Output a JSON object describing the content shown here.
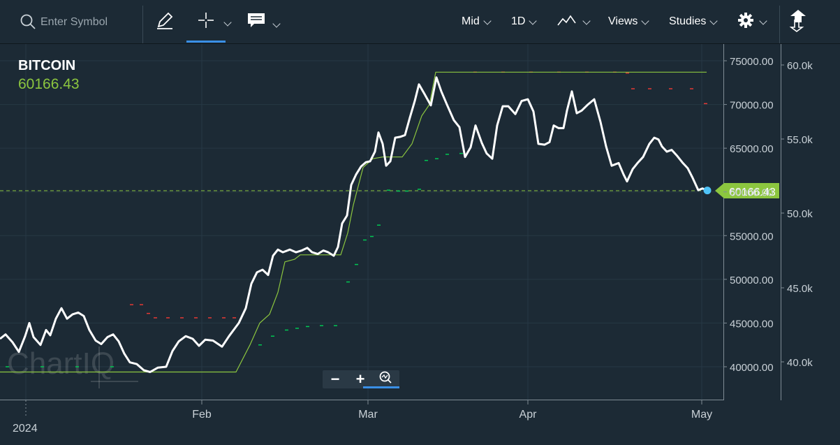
{
  "toolbar": {
    "search_placeholder": "Enter Symbol",
    "mid_label": "Mid",
    "period_label": "1D",
    "views_label": "Views",
    "studies_label": "Studies"
  },
  "chart": {
    "symbol": "BITCOIN",
    "current_price": "60166.43",
    "price_tag": "60166.43",
    "watermark": "ChartIQ",
    "y_axis_primary": [
      "75000.00",
      "70000.00",
      "65000.00",
      "60000.00",
      "55000.00",
      "50000.00",
      "45000.00",
      "40000.00"
    ],
    "y_axis_secondary": [
      "60.0k",
      "55.0k",
      "50.0k",
      "45.0k",
      "40.0k"
    ],
    "x_axis": [
      "Feb",
      "Mar",
      "Apr",
      "May"
    ],
    "year_label": "2024",
    "colors": {
      "price_line": "#ffffff",
      "band_line": "#8cc63f",
      "sar_up": "#00c853",
      "sar_down": "#e53935",
      "tag": "#8cc63f",
      "dot": "#4fc3f7"
    }
  },
  "chart_data": {
    "type": "line",
    "title": "BITCOIN",
    "y_range": [
      38000,
      76500
    ],
    "series": [
      {
        "name": "BITCOIN",
        "values": [
          [
            0,
            43200
          ],
          [
            8,
            43700
          ],
          [
            18,
            42800
          ],
          [
            27,
            41700
          ],
          [
            36,
            43500
          ],
          [
            42,
            45000
          ],
          [
            48,
            43400
          ],
          [
            58,
            42500
          ],
          [
            66,
            44200
          ],
          [
            72,
            43600
          ],
          [
            80,
            45500
          ],
          [
            88,
            46700
          ],
          [
            96,
            45500
          ],
          [
            104,
            46000
          ],
          [
            112,
            46200
          ],
          [
            120,
            45800
          ],
          [
            128,
            44200
          ],
          [
            137,
            43000
          ],
          [
            145,
            42600
          ],
          [
            154,
            43400
          ],
          [
            162,
            43700
          ],
          [
            170,
            42900
          ],
          [
            178,
            41500
          ],
          [
            186,
            40500
          ],
          [
            196,
            40300
          ],
          [
            206,
            39600
          ],
          [
            215,
            39400
          ],
          [
            226,
            39900
          ],
          [
            238,
            40000
          ],
          [
            247,
            41800
          ],
          [
            256,
            42900
          ],
          [
            266,
            43500
          ],
          [
            276,
            43200
          ],
          [
            285,
            42400
          ],
          [
            294,
            43100
          ],
          [
            305,
            43000
          ],
          [
            318,
            42300
          ],
          [
            328,
            43500
          ],
          [
            342,
            45000
          ],
          [
            352,
            46700
          ],
          [
            360,
            49500
          ],
          [
            368,
            50800
          ],
          [
            376,
            51100
          ],
          [
            384,
            50500
          ],
          [
            391,
            52700
          ],
          [
            398,
            53400
          ],
          [
            405,
            53100
          ],
          [
            415,
            53400
          ],
          [
            424,
            53100
          ],
          [
            432,
            53300
          ],
          [
            440,
            53600
          ],
          [
            447,
            53100
          ],
          [
            455,
            52900
          ],
          [
            463,
            53300
          ],
          [
            470,
            53100
          ],
          [
            478,
            52700
          ],
          [
            484,
            53700
          ],
          [
            490,
            56400
          ],
          [
            497,
            57300
          ],
          [
            503,
            60800
          ],
          [
            510,
            62000
          ],
          [
            517,
            62900
          ],
          [
            524,
            63400
          ],
          [
            530,
            63500
          ],
          [
            537,
            64600
          ],
          [
            542,
            66800
          ],
          [
            548,
            65500
          ],
          [
            553,
            63000
          ],
          [
            559,
            63500
          ],
          [
            566,
            66200
          ],
          [
            573,
            66300
          ],
          [
            580,
            66500
          ],
          [
            587,
            68500
          ],
          [
            594,
            70400
          ],
          [
            600,
            72300
          ],
          [
            608,
            71200
          ],
          [
            617,
            69900
          ],
          [
            625,
            73100
          ],
          [
            632,
            71500
          ],
          [
            640,
            70000
          ],
          [
            650,
            68200
          ],
          [
            658,
            67400
          ],
          [
            666,
            64000
          ],
          [
            674,
            65100
          ],
          [
            681,
            67600
          ],
          [
            690,
            65600
          ],
          [
            697,
            64400
          ],
          [
            705,
            63800
          ],
          [
            712,
            67600
          ],
          [
            720,
            69800
          ],
          [
            728,
            69800
          ],
          [
            738,
            68900
          ],
          [
            747,
            70400
          ],
          [
            756,
            70600
          ],
          [
            764,
            69200
          ],
          [
            771,
            65500
          ],
          [
            780,
            65400
          ],
          [
            787,
            65700
          ],
          [
            793,
            67600
          ],
          [
            800,
            67300
          ],
          [
            807,
            67300
          ],
          [
            812,
            69300
          ],
          [
            819,
            71500
          ],
          [
            826,
            69000
          ],
          [
            833,
            69300
          ],
          [
            842,
            70000
          ],
          [
            851,
            70600
          ],
          [
            860,
            68000
          ],
          [
            868,
            65200
          ],
          [
            876,
            63000
          ],
          [
            886,
            63300
          ],
          [
            893,
            62000
          ],
          [
            898,
            61200
          ],
          [
            906,
            62600
          ],
          [
            913,
            63300
          ],
          [
            921,
            64000
          ],
          [
            930,
            65500
          ],
          [
            937,
            66200
          ],
          [
            943,
            66000
          ],
          [
            948,
            65200
          ],
          [
            955,
            64600
          ],
          [
            962,
            64800
          ],
          [
            970,
            64100
          ],
          [
            978,
            63300
          ],
          [
            985,
            62700
          ],
          [
            992,
            61600
          ],
          [
            1000,
            60200
          ],
          [
            1006,
            60400
          ],
          [
            1013,
            60166
          ]
        ]
      },
      {
        "name": "band",
        "values": [
          [
            0,
            39400
          ],
          [
            90,
            39400
          ],
          [
            200,
            39400
          ],
          [
            250,
            39400
          ],
          [
            338,
            39400
          ],
          [
            358,
            42500
          ],
          [
            372,
            45000
          ],
          [
            386,
            46000
          ],
          [
            398,
            48500
          ],
          [
            408,
            52000
          ],
          [
            422,
            52300
          ],
          [
            430,
            52800
          ],
          [
            488,
            52800
          ],
          [
            498,
            55300
          ],
          [
            506,
            58500
          ],
          [
            520,
            62800
          ],
          [
            534,
            63800
          ],
          [
            548,
            64000
          ],
          [
            576,
            64000
          ],
          [
            590,
            65500
          ],
          [
            604,
            68700
          ],
          [
            615,
            70000
          ],
          [
            624,
            73700
          ],
          [
            700,
            73700
          ],
          [
            800,
            73700
          ],
          [
            900,
            73700
          ],
          [
            1012,
            73700
          ]
        ]
      }
    ],
    "sar_up": [
      [
        10,
        40000
      ],
      [
        60,
        40000
      ],
      [
        110,
        40000
      ],
      [
        160,
        40000
      ],
      [
        372,
        42500
      ],
      [
        390,
        43500
      ],
      [
        410,
        44200
      ],
      [
        425,
        44400
      ],
      [
        440,
        44600
      ],
      [
        460,
        44700
      ],
      [
        480,
        44700
      ],
      [
        498,
        49700
      ],
      [
        510,
        51700
      ],
      [
        522,
        54500
      ],
      [
        532,
        54900
      ],
      [
        542,
        56200
      ],
      [
        556,
        60200
      ],
      [
        570,
        60100
      ],
      [
        582,
        60100
      ],
      [
        600,
        60300
      ],
      [
        610,
        63600
      ],
      [
        625,
        63800
      ],
      [
        640,
        64300
      ],
      [
        660,
        64400
      ]
    ],
    "sar_down": [
      [
        188,
        47100
      ],
      [
        202,
        47100
      ],
      [
        212,
        46100
      ],
      [
        222,
        45600
      ],
      [
        240,
        45600
      ],
      [
        260,
        45600
      ],
      [
        280,
        45600
      ],
      [
        300,
        45600
      ],
      [
        320,
        45600
      ],
      [
        335,
        45600
      ],
      [
        680,
        73700
      ],
      [
        720,
        73700
      ],
      [
        760,
        73700
      ],
      [
        800,
        73700
      ],
      [
        840,
        73700
      ],
      [
        880,
        73700
      ],
      [
        898,
        73600
      ],
      [
        906,
        71800
      ],
      [
        930,
        71800
      ],
      [
        960,
        71800
      ],
      [
        990,
        71800
      ],
      [
        1010,
        70100
      ]
    ],
    "x_axis_labels": [
      "Feb",
      "Mar",
      "Apr",
      "May"
    ],
    "y_axis_labels": [
      "75000.00",
      "70000.00",
      "65000.00",
      "60000.00",
      "55000.00",
      "50000.00",
      "45000.00",
      "40000.00"
    ],
    "secondary_axis_labels": [
      "60.0k",
      "55.0k",
      "50.0k",
      "45.0k",
      "40.0k"
    ],
    "last_value": 60166.43,
    "grid": true
  }
}
